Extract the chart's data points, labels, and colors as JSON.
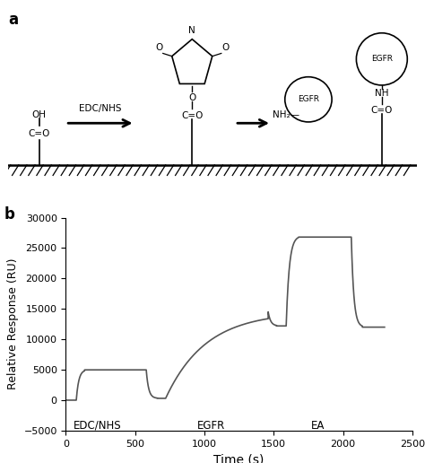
{
  "panel_a_label": "a",
  "panel_b_label": "b",
  "ylabel": "Relative Response (RU)",
  "xlabel": "Time (s)",
  "ylim": [
    -5000,
    30000
  ],
  "xlim": [
    0,
    2500
  ],
  "yticks": [
    -5000,
    0,
    5000,
    10000,
    15000,
    20000,
    25000,
    30000
  ],
  "xticks": [
    0,
    500,
    1000,
    1500,
    2000,
    2500
  ],
  "label_edc": "EDC/NHS",
  "label_egfr": "EGFR",
  "label_ea": "EA",
  "line_color": "#555555",
  "background_color": "#ffffff",
  "fig_width": 4.74,
  "fig_height": 5.16,
  "dpi": 100
}
